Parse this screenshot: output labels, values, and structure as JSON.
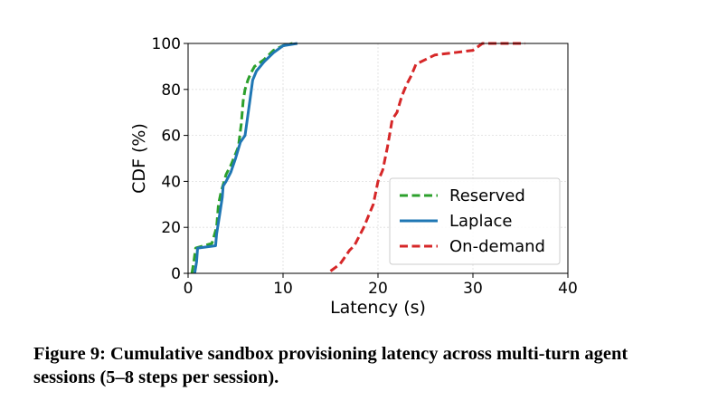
{
  "chart_data": {
    "type": "line",
    "title": "",
    "xlabel": "Latency (s)",
    "ylabel": "CDF (%)",
    "xlim": [
      0,
      40
    ],
    "ylim": [
      0,
      100
    ],
    "xticks": [
      0,
      10,
      20,
      30,
      40
    ],
    "yticks": [
      0,
      20,
      40,
      60,
      80,
      100
    ],
    "grid": true,
    "legend_position": "lower-right",
    "series": [
      {
        "name": "Reserved",
        "color": "#2ca02c",
        "dash": "dashed",
        "x": [
          0.4,
          0.6,
          0.8,
          2.5,
          3.0,
          3.2,
          3.5,
          3.8,
          4.0,
          4.5,
          5.0,
          5.3,
          5.6,
          5.8,
          6.0,
          6.3,
          6.6,
          7.0,
          8.0,
          9.0,
          10.0,
          11.0
        ],
        "y": [
          0,
          5,
          11,
          13,
          20,
          30,
          36,
          40,
          43,
          47,
          52,
          55,
          65,
          75,
          80,
          84,
          87,
          90,
          93,
          97,
          99,
          100
        ]
      },
      {
        "name": "Laplace",
        "color": "#1f77b4",
        "dash": "solid",
        "x": [
          0.7,
          0.9,
          1.0,
          2.9,
          3.0,
          3.3,
          3.6,
          3.7,
          4.0,
          4.5,
          5.0,
          5.5,
          6.0,
          6.5,
          6.8,
          7.2,
          8.0,
          9.0,
          10.0,
          11.5
        ],
        "y": [
          0,
          5,
          11,
          12,
          17,
          25,
          33,
          38,
          40,
          44,
          50,
          57,
          60,
          75,
          84,
          88,
          92,
          96,
          99,
          100
        ]
      },
      {
        "name": "On-demand",
        "color": "#d62728",
        "dash": "dashed",
        "x": [
          15.0,
          16.0,
          16.5,
          17.0,
          17.5,
          18.0,
          18.5,
          19.0,
          19.5,
          20.0,
          20.5,
          21.0,
          21.5,
          22.0,
          22.5,
          23.0,
          23.5,
          24.0,
          25.0,
          26.0,
          28.0,
          30.0,
          31.0,
          33.0,
          35.5
        ],
        "y": [
          1,
          4,
          7,
          10,
          12,
          16,
          20,
          25,
          30,
          40,
          45,
          55,
          67,
          70,
          77,
          82,
          86,
          91,
          93,
          95,
          96,
          97,
          100,
          100,
          100
        ]
      }
    ]
  },
  "caption": "Figure 9: Cumulative sandbox provisioning latency across multi-turn agent sessions (5–8 steps per session)."
}
